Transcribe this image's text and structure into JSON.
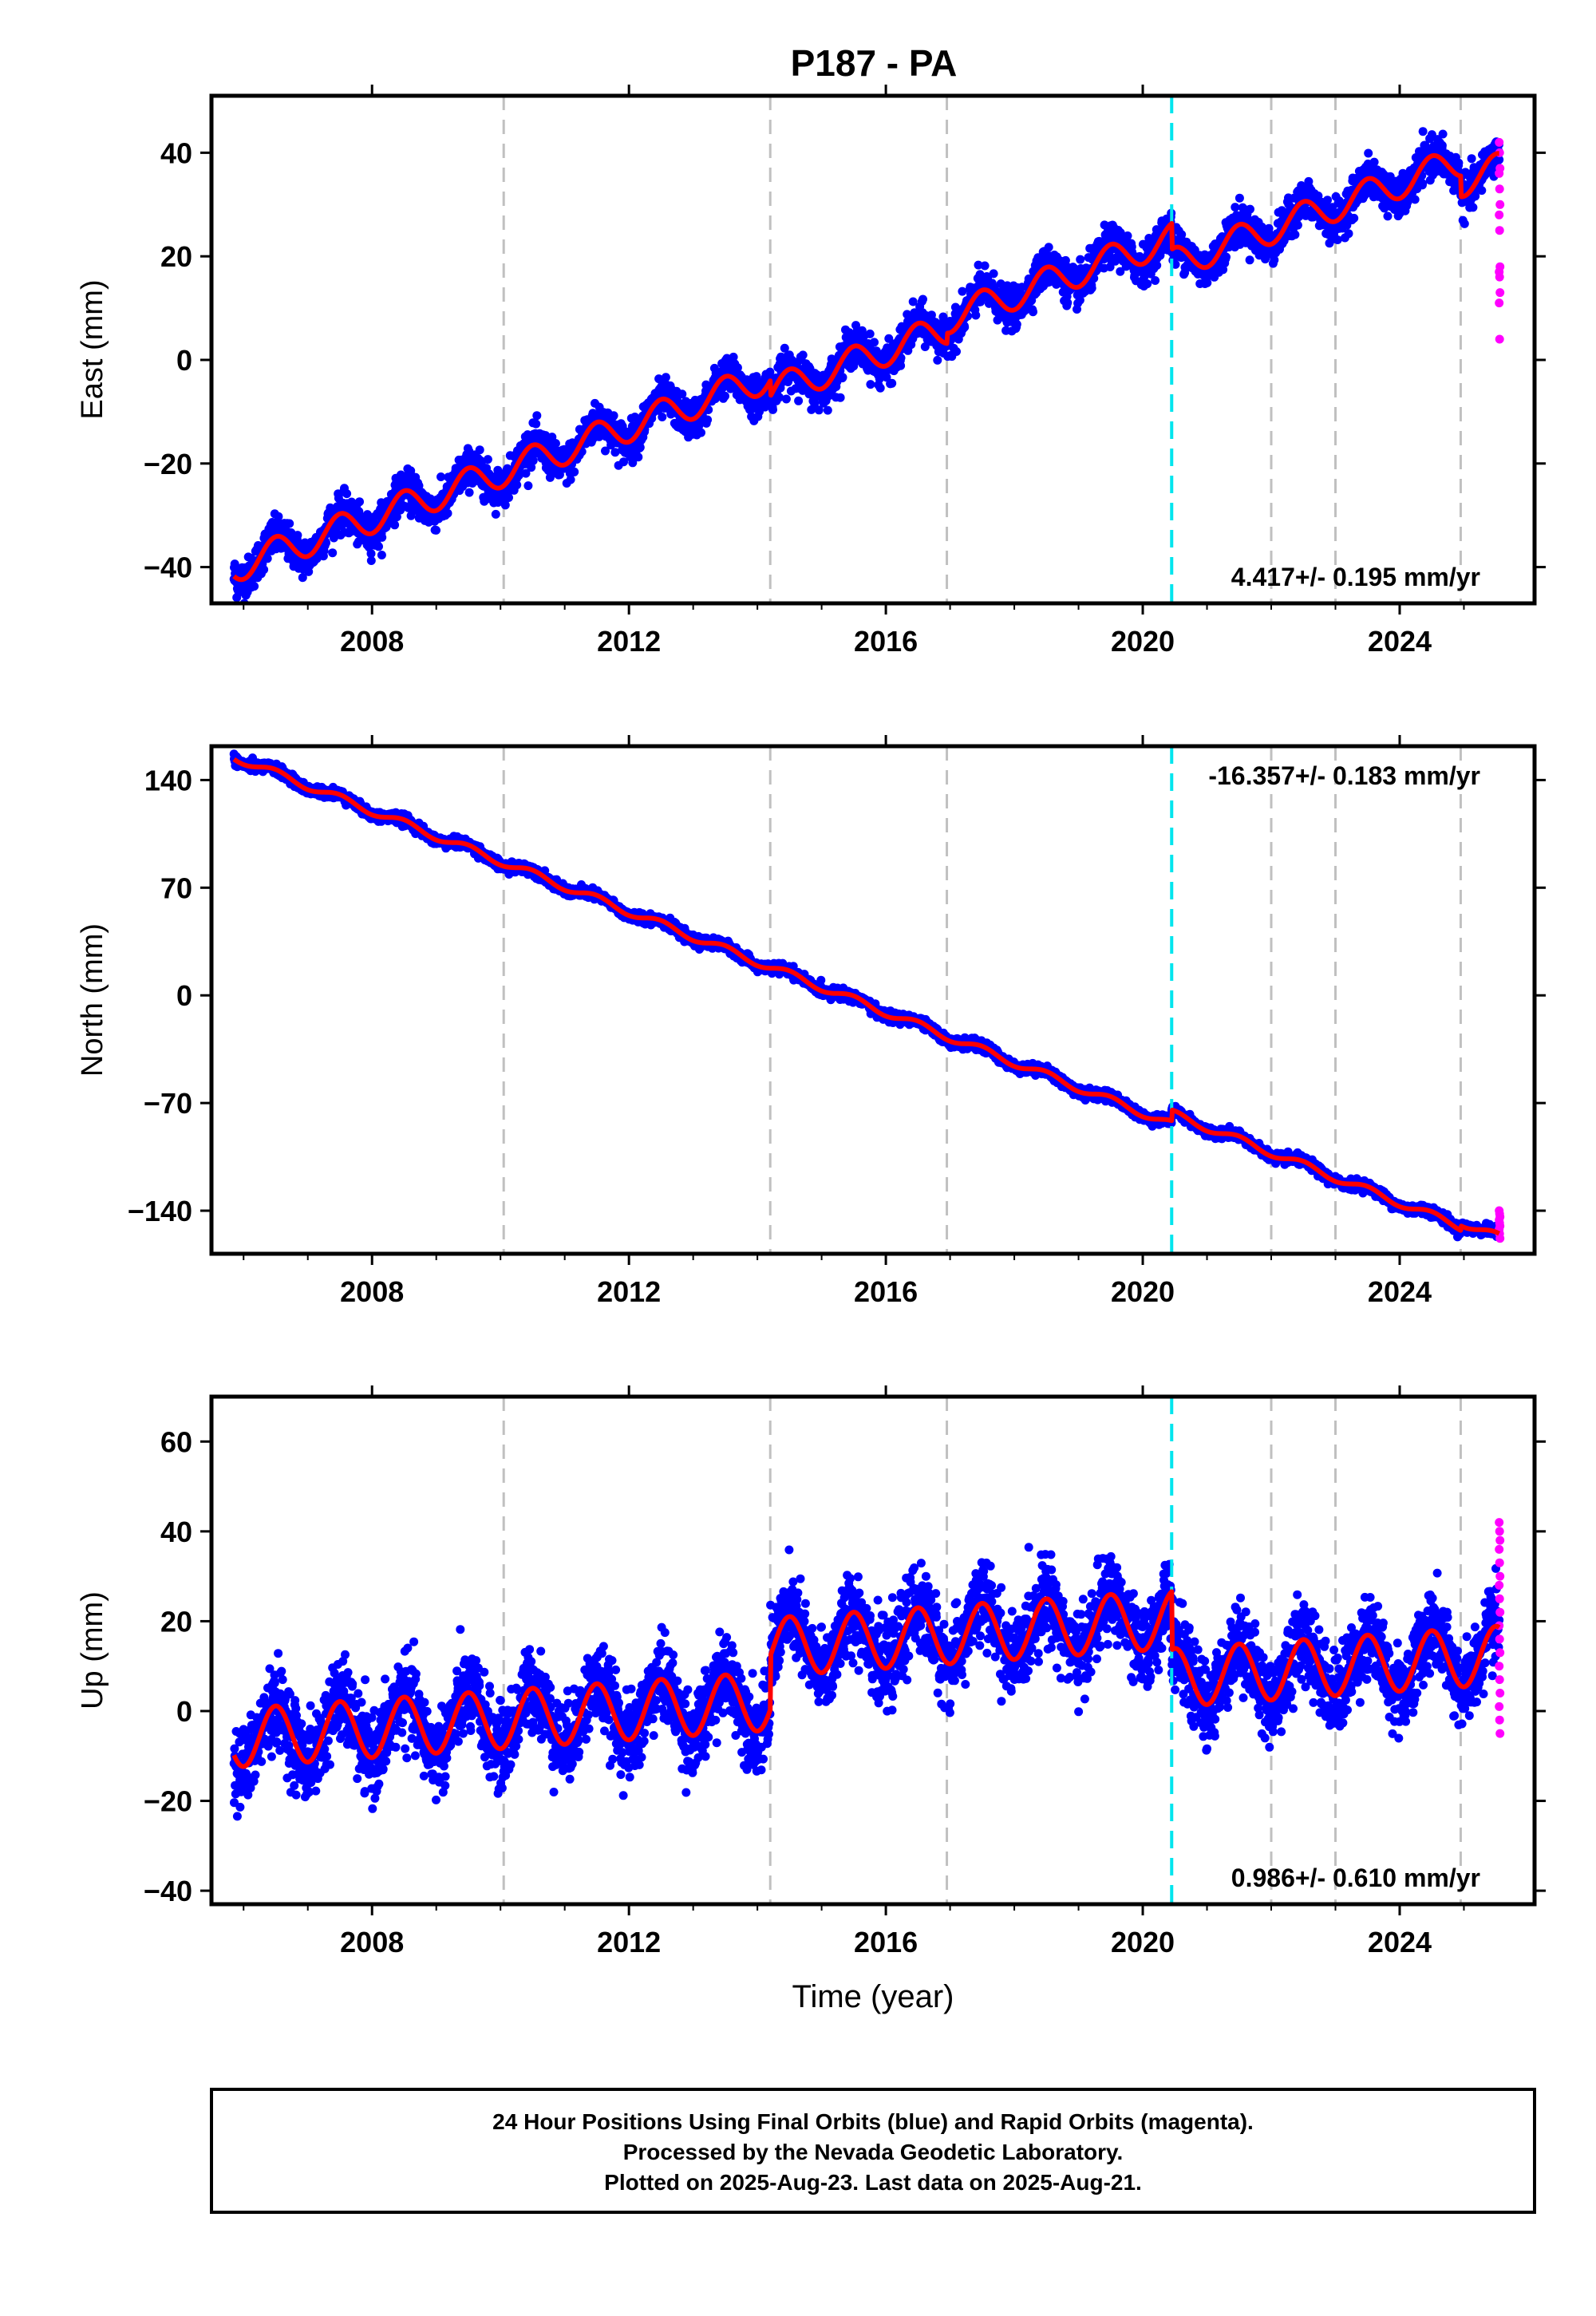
{
  "title": "P187 - PA",
  "colors": {
    "final_points": "#0000ff",
    "rapid_points": "#ff00ff",
    "model_line": "#ff0000",
    "break_line_gray": "#c0c0c0",
    "break_line_cyan": "#00e5ee",
    "frame": "#000000"
  },
  "xlabel": "Time (year)",
  "x_ticks": [
    "2008",
    "2012",
    "2016",
    "2020",
    "2024"
  ],
  "footer": {
    "line1": "24 Hour Positions Using Final Orbits (blue) and Rapid Orbits (magenta).",
    "line2": "Processed by the Nevada Geodetic Laboratory.",
    "line3": "Plotted on 2025-Aug-23. Last data on 2025-Aug-21."
  },
  "chart_data": [
    {
      "type": "scatter",
      "component": "east",
      "ylabel": "East (mm)",
      "xlim": [
        2005.5,
        2026.1
      ],
      "ylim": [
        -47,
        51
      ],
      "y_ticks": [
        "−40",
        "−20",
        "0",
        "20",
        "40"
      ],
      "y_tick_values": [
        -40,
        -20,
        0,
        20,
        40
      ],
      "rate_label": "4.417+/- 0.195 mm/yr",
      "rate_position": "bottom-right",
      "data_start": 2005.85,
      "data_end": 2025.55,
      "rapid_start": 2025.55,
      "rate_mm_yr": 4.417,
      "intercept_mm": -40,
      "seasonal_amplitude_mm": 3,
      "noise_mm": 1.8,
      "offsets": [
        {
          "epoch": 2014.2,
          "size": -3
        },
        {
          "epoch": 2016.95,
          "size": 2
        },
        {
          "epoch": 2020.45,
          "size": -5
        },
        {
          "epoch": 2024.95,
          "size": -4
        }
      ],
      "rapid_values": [
        42,
        40,
        37,
        36,
        33,
        30,
        28,
        25,
        18,
        17,
        16,
        13,
        11,
        4
      ],
      "gray_breaks": [
        2010.05,
        2014.2,
        2016.95,
        2022.0,
        2023.0,
        2024.95
      ],
      "cyan_break": 2020.45
    },
    {
      "type": "scatter",
      "component": "north",
      "ylabel": "North (mm)",
      "xlim": [
        2005.5,
        2026.1
      ],
      "ylim": [
        -168,
        162
      ],
      "y_ticks": [
        "−140",
        "−70",
        "0",
        "70",
        "140"
      ],
      "y_tick_values": [
        -140,
        -70,
        0,
        70,
        140
      ],
      "rate_label": "-16.357+/- 0.183 mm/yr",
      "rate_position": "top-right",
      "data_start": 2005.85,
      "data_end": 2025.55,
      "rapid_start": 2025.55,
      "rate_mm_yr": -16.357,
      "intercept_mm": 155,
      "seasonal_amplitude_mm": 2.5,
      "noise_mm": 1.6,
      "offsets": [
        {
          "epoch": 2020.45,
          "size": 7
        },
        {
          "epoch": 2024.95,
          "size": 3
        }
      ],
      "rapid_values": [
        -140,
        -142,
        -144,
        -146,
        -148,
        -150,
        -152,
        -155,
        -158
      ],
      "gray_breaks": [
        2010.05,
        2014.2,
        2016.95,
        2022.0,
        2023.0,
        2024.95
      ],
      "cyan_break": 2020.45
    },
    {
      "type": "scatter",
      "component": "up",
      "ylabel": "Up (mm)",
      "xlim": [
        2005.5,
        2026.1
      ],
      "ylim": [
        -43,
        70
      ],
      "y_ticks": [
        "−40",
        "−20",
        "0",
        "20",
        "40",
        "60"
      ],
      "y_tick_values": [
        -40,
        -20,
        0,
        20,
        40,
        60
      ],
      "rate_label": "0.986+/- 0.610 mm/yr",
      "rate_position": "bottom-right",
      "data_start": 2005.85,
      "data_end": 2025.55,
      "rapid_start": 2025.55,
      "rate_mm_yr": 0.986,
      "intercept_mm": -6,
      "seasonal_amplitude_mm": 6.5,
      "noise_mm": 4.5,
      "offsets": [
        {
          "epoch": 2014.2,
          "size": 12
        },
        {
          "epoch": 2020.45,
          "size": -13
        }
      ],
      "rapid_values": [
        42,
        40,
        38,
        36,
        33,
        30,
        28,
        25,
        22,
        19,
        16,
        13,
        10,
        7,
        4,
        1,
        -2,
        -5
      ],
      "gray_breaks": [
        2010.05,
        2014.2,
        2016.95,
        2022.0,
        2023.0,
        2024.95
      ],
      "cyan_break": 2020.45
    }
  ]
}
